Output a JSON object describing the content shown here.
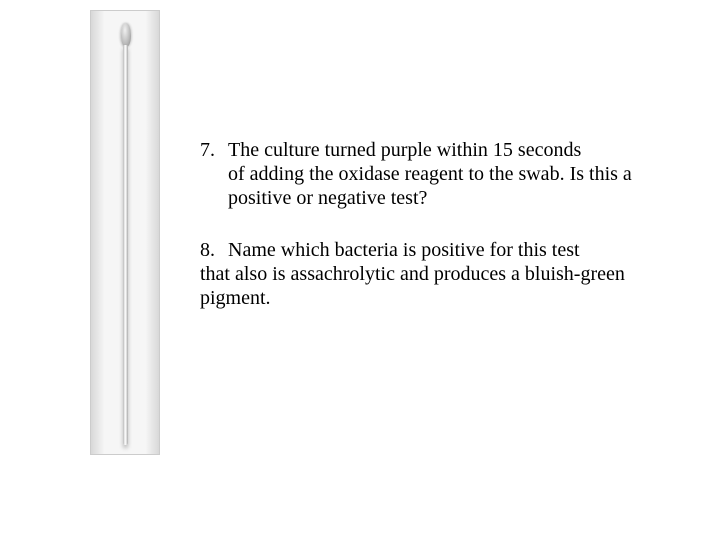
{
  "image": {
    "description": "swab-stick",
    "background": "#f6f6f6",
    "stick_color": "#e8e8e8"
  },
  "questions": {
    "q7": {
      "number": "7.",
      "line1": "The culture turned purple within 15 seconds",
      "rest": "of adding the oxidase reagent to the swab.  Is this a positive or negative test?"
    },
    "q8": {
      "number": "8.",
      "line1": "Name which bacteria is positive for this test",
      "rest": "that also is assachrolytic and produces a bluish-green pigment."
    }
  },
  "typography": {
    "font_family": "Times New Roman",
    "font_size_pt": 15,
    "text_color": "#000000"
  }
}
